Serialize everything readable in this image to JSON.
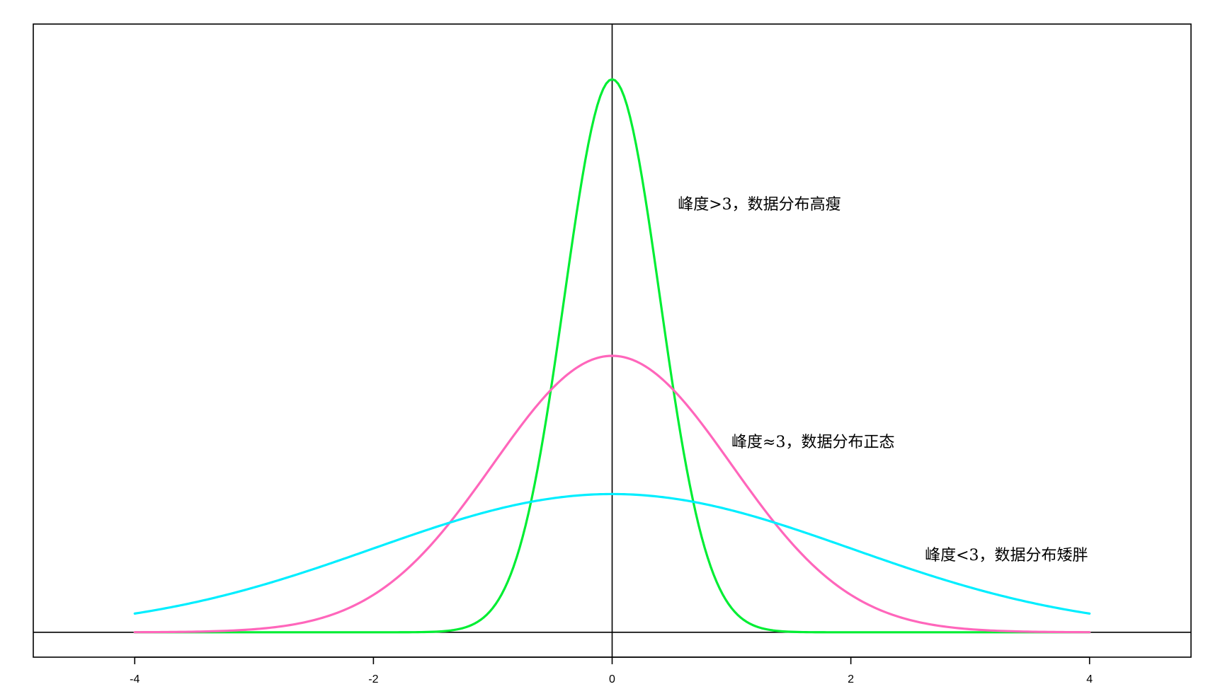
{
  "chart_data": {
    "type": "line",
    "title": "",
    "xlabel": "",
    "ylabel": "",
    "xlim": [
      -4.85,
      4.85
    ],
    "ylim": [
      -0.045,
      1.1
    ],
    "x_ticks": [
      -4,
      -2,
      0,
      2,
      4
    ],
    "x_tick_labels": [
      "-4",
      "-2",
      "0",
      "2",
      "4"
    ],
    "x_range": [
      -4,
      4
    ],
    "grid": false,
    "legend": "none",
    "reference_lines": {
      "horizontal_y": 0,
      "vertical_x": 0
    },
    "series": [
      {
        "name": "",
        "color": "#00ee33",
        "kind": "high-kurtosis",
        "peak": 1.0,
        "sigma": 0.4,
        "x": [
          -4,
          -3,
          -2,
          -1.5,
          -1,
          -0.75,
          -0.5,
          -0.25,
          0,
          0.25,
          0.5,
          0.75,
          1,
          1.5,
          2,
          3,
          4
        ],
        "values": [
          0.0,
          0.0,
          0.0,
          0.009,
          0.044,
          0.172,
          0.458,
          0.823,
          1.0,
          0.823,
          0.458,
          0.172,
          0.044,
          0.009,
          0.0,
          0.0,
          0.0
        ]
      },
      {
        "name": "",
        "color": "#ff66bb",
        "kind": "normal",
        "peak": 0.5,
        "sigma": 1.0,
        "x": [
          -4,
          -3,
          -2,
          -1,
          -0.5,
          0,
          0.5,
          1,
          2,
          3,
          4
        ],
        "values": [
          0.0002,
          0.0056,
          0.0677,
          0.3033,
          0.4412,
          0.5,
          0.4412,
          0.3033,
          0.0677,
          0.0056,
          0.0002
        ]
      },
      {
        "name": "",
        "color": "#00eeff",
        "kind": "low-kurtosis",
        "peak": 0.25,
        "sigma": 2.0,
        "x": [
          -4,
          -3,
          -2,
          -1,
          0,
          1,
          2,
          3,
          4
        ],
        "values": [
          0.0338,
          0.0811,
          0.1516,
          0.2206,
          0.25,
          0.2206,
          0.1516,
          0.0811,
          0.0338
        ]
      }
    ],
    "annotations": [
      {
        "text": "峰度>3，数据分布高瘦",
        "x": 0.55,
        "y": 0.765
      },
      {
        "text": "峰度≈3，数据分布正态",
        "x": 1.0,
        "y": 0.335
      },
      {
        "text": "峰度<3，数据分布矮胖",
        "x": 2.62,
        "y": 0.13
      }
    ]
  }
}
